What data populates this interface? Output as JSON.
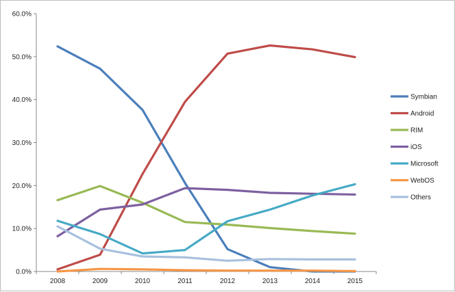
{
  "chart_data": {
    "type": "line",
    "title": "",
    "xlabel": "",
    "ylabel": "",
    "x": [
      "2008",
      "2009",
      "2010",
      "2011",
      "2012",
      "2013",
      "2014",
      "2015"
    ],
    "ylim": [
      0,
      60
    ],
    "yticks": [
      0,
      10,
      20,
      30,
      40,
      50,
      60
    ],
    "ytick_labels": [
      "0.0%",
      "10.0%",
      "20.0%",
      "30.0%",
      "40.0%",
      "50.0%",
      "60.0%"
    ],
    "grid": false,
    "legend_position": "right",
    "series": [
      {
        "name": "Symbian",
        "color": "#4a7ebb",
        "values": [
          52.4,
          47.2,
          37.6,
          20.6,
          5.2,
          1.0,
          0.0,
          0.0
        ]
      },
      {
        "name": "Android",
        "color": "#be4b48",
        "values": [
          0.5,
          3.9,
          22.7,
          39.5,
          50.7,
          52.6,
          51.7,
          49.9
        ]
      },
      {
        "name": "RIM",
        "color": "#98b954",
        "values": [
          16.6,
          19.9,
          16.0,
          11.5,
          10.9,
          10.1,
          9.4,
          8.8
        ]
      },
      {
        "name": "iOS",
        "color": "#7d60a0",
        "values": [
          8.2,
          14.4,
          15.6,
          19.4,
          19.0,
          18.3,
          18.1,
          17.9
        ]
      },
      {
        "name": "Microsoft",
        "color": "#46aac5",
        "values": [
          11.8,
          8.7,
          4.2,
          5.0,
          11.7,
          14.4,
          17.7,
          20.3
        ]
      },
      {
        "name": "WebOS",
        "color": "#f79646",
        "values": [
          0.0,
          0.6,
          0.5,
          0.3,
          0.2,
          0.2,
          0.2,
          0.1
        ]
      },
      {
        "name": "Others",
        "color": "#a7c0de",
        "values": [
          10.5,
          5.3,
          3.5,
          3.3,
          2.5,
          2.9,
          2.8,
          2.8
        ]
      }
    ]
  }
}
